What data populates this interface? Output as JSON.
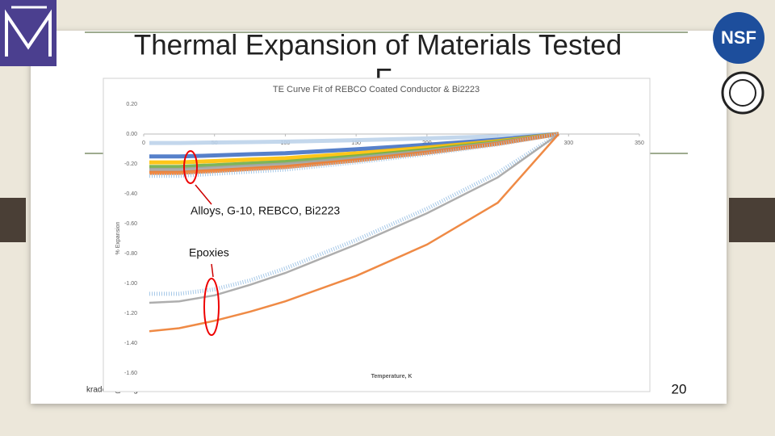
{
  "slide": {
    "title": "Thermal Expansion of Materials Tested",
    "title_continued": "F",
    "footer": "kradcliff@magnet.fsu.edu",
    "page_number": "20",
    "logo": "NSF"
  },
  "chart_data": {
    "type": "line",
    "title": "TE Curve Fit of REBCO Coated Conductor & Bi2223",
    "x_label": "Temperature, K",
    "y_label": "% Expansion",
    "x": [
      4,
      25,
      50,
      75,
      100,
      150,
      200,
      250,
      293
    ],
    "series": [
      {
        "color": "#bcd3ea",
        "values": [
          -0.06,
          -0.06,
          -0.057,
          -0.054,
          -0.051,
          -0.041,
          -0.029,
          -0.015,
          0
        ]
      },
      {
        "color": "#4472c4",
        "values": [
          -0.15,
          -0.15,
          -0.143,
          -0.135,
          -0.128,
          -0.102,
          -0.072,
          -0.038,
          0
        ]
      },
      {
        "color": "#ffc000",
        "values": [
          -0.19,
          -0.19,
          -0.181,
          -0.171,
          -0.162,
          -0.129,
          -0.091,
          -0.048,
          0
        ]
      },
      {
        "color": "#70ad47",
        "values": [
          -0.22,
          -0.22,
          -0.209,
          -0.198,
          -0.187,
          -0.15,
          -0.106,
          -0.055,
          0
        ]
      },
      {
        "color": "#a5a5a5",
        "values": [
          -0.24,
          -0.24,
          -0.228,
          -0.216,
          -0.204,
          -0.163,
          -0.115,
          -0.06,
          0
        ]
      },
      {
        "color": "#ed7d31",
        "values": [
          -0.26,
          -0.26,
          -0.247,
          -0.234,
          -0.221,
          -0.177,
          -0.125,
          -0.065,
          0
        ]
      },
      {
        "color": "#9dc3e6",
        "values": [
          -0.28,
          -0.28,
          -0.266,
          -0.252,
          -0.238,
          -0.19,
          -0.134,
          -0.07,
          0
        ]
      },
      {
        "color": "#9dc3e6",
        "values": [
          -1.07,
          -1.07,
          -1.04,
          -0.98,
          -0.9,
          -0.71,
          -0.5,
          -0.26,
          0
        ]
      },
      {
        "color": "#a5a5a5",
        "values": [
          -1.13,
          -1.12,
          -1.08,
          -1.01,
          -0.93,
          -0.74,
          -0.53,
          -0.29,
          0
        ]
      },
      {
        "color": "#ed7d31",
        "values": [
          -1.32,
          -1.3,
          -1.25,
          -1.19,
          -1.12,
          -0.95,
          -0.74,
          -0.46,
          0
        ]
      }
    ],
    "xlim": [
      0,
      350
    ],
    "xticks": [
      0,
      50,
      100,
      150,
      200,
      250,
      300,
      350
    ],
    "ylim": [
      -1.6,
      0.2
    ],
    "yticks": [
      {
        "value": 0.2,
        "label": "0.20"
      },
      {
        "value": 0,
        "label": "0.00"
      },
      {
        "value": -0.2,
        "label": "-0.20"
      },
      {
        "value": -0.4,
        "label": "-0.40"
      },
      {
        "value": -0.6,
        "label": "-0.60"
      },
      {
        "value": -0.8,
        "label": "-0.80"
      },
      {
        "value": -1.0,
        "label": "-1.00"
      },
      {
        "value": -1.2,
        "label": "-1.20"
      },
      {
        "value": -1.4,
        "label": "-1.40"
      },
      {
        "value": -1.6,
        "label": "-1.60"
      }
    ],
    "annotations": [
      "Alloys, G-10, REBCO, Bi2223",
      "Epoxies"
    ]
  }
}
